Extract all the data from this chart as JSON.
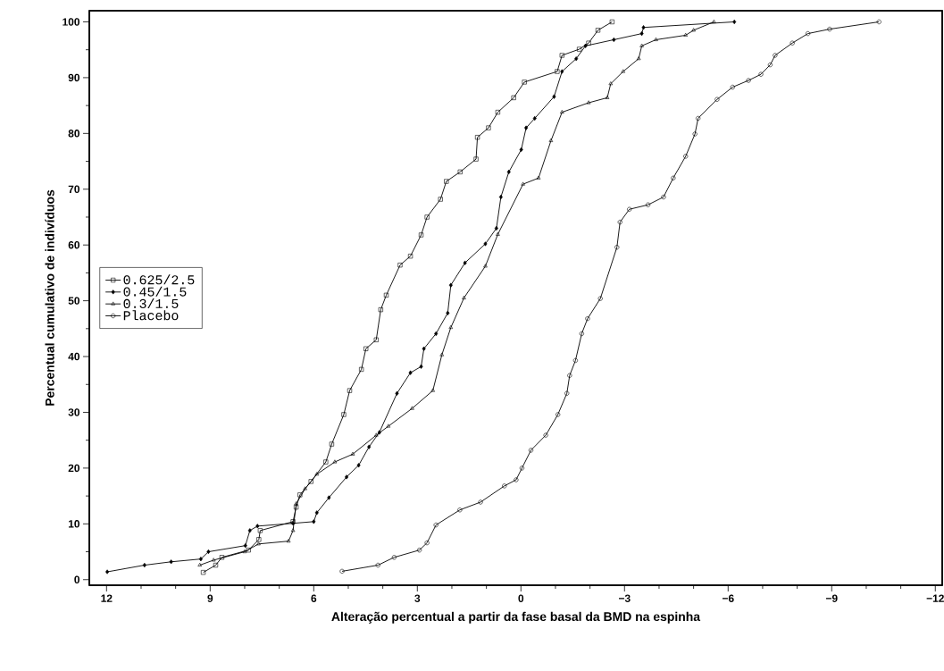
{
  "chart_data": {
    "type": "line",
    "xlabel": "Alteração percentual a partir da fase basal da BMD na espinha",
    "ylabel": "Percentual cumulativo de indivíduos",
    "xlim": [
      12.5,
      -12.2
    ],
    "ylim": [
      -1,
      102
    ],
    "xticks": [
      12,
      9,
      6,
      3,
      0,
      {
        "value": -3,
        "label": "−3"
      },
      {
        "value": -6,
        "label": "−6"
      },
      {
        "value": -9,
        "label": "−9"
      },
      {
        "value": -12,
        "label": "−12"
      }
    ],
    "yticks": [
      0,
      10,
      20,
      30,
      40,
      50,
      60,
      70,
      80,
      90,
      100
    ],
    "legend": "left",
    "grid": false,
    "line_style": "solid",
    "series": [
      {
        "name": "0.625/2.5",
        "color": "#000000",
        "marker": "square",
        "x": [
          9.2,
          8.84,
          8.66,
          7.89,
          7.59,
          7.55,
          6.6,
          6.51,
          6.4,
          6.08,
          5.65,
          5.48,
          5.13,
          4.96,
          4.62,
          4.49,
          4.19,
          4.06,
          3.9,
          3.5,
          3.2,
          2.89,
          2.72,
          2.33,
          2.16,
          1.76,
          1.3,
          1.26,
          0.94,
          0.67,
          0.21,
          -0.1,
          -1.05,
          -1.19,
          -1.69,
          -1.96,
          -2.23,
          -2.64
        ],
        "values": [
          1.3,
          2.6,
          4.0,
          5.3,
          7.2,
          8.8,
          10.4,
          13,
          15.2,
          17.6,
          21.1,
          24.3,
          29.6,
          33.9,
          37.7,
          41.4,
          43.0,
          48.4,
          51.0,
          56.4,
          58.0,
          61.8,
          65.0,
          68.2,
          71.4,
          73.1,
          75.4,
          79.3,
          81.0,
          83.8,
          86.4,
          89.2,
          91.1,
          94.0,
          95.1,
          96.2,
          98.5,
          100
        ]
      },
      {
        "name": "0.45/1.5",
        "color": "#000000",
        "marker": "diamond",
        "x": [
          11.98,
          10.9,
          10.13,
          9.27,
          9.05,
          7.98,
          7.85,
          7.63,
          6.6,
          6.0,
          5.91,
          5.56,
          5.05,
          4.7,
          4.4,
          4.1,
          3.59,
          3.2,
          2.89,
          2.81,
          2.46,
          2.12,
          2.03,
          1.62,
          1.03,
          0.71,
          0.58,
          0.35,
          -0.01,
          -0.15,
          -0.4,
          -0.96,
          -1.19,
          -1.6,
          -1.87,
          -2.69,
          -3.5,
          -3.55,
          -6.18
        ],
        "values": [
          1.4,
          2.6,
          3.2,
          3.7,
          5.0,
          6.1,
          8.8,
          9.6,
          10.1,
          10.4,
          12.0,
          14.7,
          18.4,
          20.5,
          23.8,
          26.4,
          33.4,
          37.1,
          38.2,
          41.4,
          44.1,
          47.8,
          52.8,
          56.8,
          60.2,
          63.0,
          68.6,
          73.1,
          77.1,
          81.0,
          82.7,
          86.6,
          91.1,
          93.4,
          95.7,
          96.8,
          97.9,
          99.0,
          100
        ]
      },
      {
        "name": "0.3/1.5",
        "color": "#000000",
        "marker": "triangle",
        "x": [
          9.3,
          8.9,
          8.0,
          7.6,
          6.73,
          6.6,
          6.51,
          6.25,
          5.91,
          5.39,
          4.87,
          4.19,
          3.84,
          3.15,
          2.55,
          2.29,
          2.03,
          1.65,
          1.03,
          0.67,
          -0.06,
          -0.51,
          -0.87,
          -1.19,
          -1.96,
          -2.5,
          -2.6,
          -2.96,
          -3.41,
          -3.5,
          -3.91,
          -4.77,
          -5.0,
          -5.59
        ],
        "values": [
          2.6,
          3.5,
          5.0,
          6.4,
          6.9,
          8.8,
          13.6,
          16.3,
          18.9,
          21.1,
          22.5,
          25.9,
          27.5,
          30.7,
          33.9,
          40.3,
          45.2,
          50.5,
          56.2,
          61.9,
          70.9,
          72.0,
          78.7,
          83.8,
          85.5,
          86.4,
          88.9,
          91.1,
          93.4,
          95.7,
          96.8,
          97.6,
          98.5,
          100
        ]
      },
      {
        "name": "Placebo",
        "color": "#000000",
        "marker": "circle",
        "x": [
          5.18,
          4.14,
          3.67,
          2.94,
          2.72,
          2.46,
          1.77,
          1.17,
          0.48,
          0.14,
          -0.03,
          -0.29,
          -0.72,
          -1.07,
          -1.33,
          -1.41,
          -1.58,
          -1.76,
          -1.93,
          -2.3,
          -2.78,
          -2.87,
          -3.14,
          -3.68,
          -4.13,
          -4.41,
          -4.77,
          -5.04,
          -5.13,
          -5.68,
          -6.13,
          -6.59,
          -6.95,
          -7.22,
          -7.36,
          -7.86,
          -8.31,
          -8.94,
          -10.37
        ],
        "values": [
          1.5,
          2.6,
          4.0,
          5.3,
          6.6,
          9.8,
          12.5,
          13.9,
          16.8,
          17.9,
          20.0,
          23.2,
          25.9,
          29.6,
          33.4,
          36.6,
          39.3,
          44.1,
          46.8,
          50.4,
          59.6,
          64.1,
          66.4,
          67.2,
          68.6,
          72.0,
          75.9,
          79.9,
          82.7,
          86.1,
          88.3,
          89.5,
          90.6,
          92.3,
          94.0,
          96.2,
          97.9,
          98.7,
          100
        ]
      }
    ]
  }
}
